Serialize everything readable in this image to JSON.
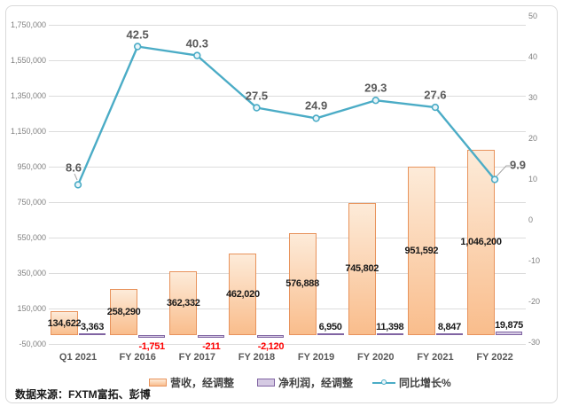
{
  "source_text": "数据来源：FXTM富拓、彭博",
  "legend": {
    "revenue_label": "营收，经调整",
    "profit_label": "净利润，经调整",
    "growth_label": "同比增长%"
  },
  "colors": {
    "revenue_fill_top": "#FDEBD9",
    "revenue_fill_bottom": "#F9BD8C",
    "revenue_border": "#E8935C",
    "profit_fill": "#D5CAE3",
    "profit_border": "#8064A2",
    "growth_line": "#4BACC6",
    "growth_marker_fill": "#EAF5F9",
    "negative_label": "#FF0000",
    "gridline": "#DCDCDC",
    "axis_text": "#808080",
    "category_text": "#595959",
    "leader_line": "#A6A6A6"
  },
  "chart_data": {
    "type": "combo bar+line, dual axis",
    "categories": [
      "Q1 2021",
      "FY 2016",
      "FY 2017",
      "FY 2018",
      "FY 2019",
      "FY 2020",
      "FY 2021",
      "FY 2022"
    ],
    "series": [
      {
        "name": "营收，经调整",
        "type": "bar",
        "axis": "left",
        "values": [
          134622,
          258290,
          362332,
          462020,
          576888,
          745802,
          951592,
          1046200
        ],
        "labels": [
          "134,622",
          "258,290",
          "362,332",
          "462,020",
          "576,888",
          "745,802",
          "951,592",
          "1,046,200"
        ]
      },
      {
        "name": "净利润，经调整",
        "type": "bar",
        "axis": "left",
        "values": [
          3363,
          -1751,
          -211,
          -2120,
          6950,
          11398,
          8847,
          19875
        ],
        "labels": [
          "3,363",
          "-1,751",
          "-211",
          "-2,120",
          "6,950",
          "11,398",
          "8,847",
          "19,875"
        ]
      },
      {
        "name": "同比增长%",
        "type": "line",
        "axis": "right",
        "values": [
          8.6,
          42.5,
          40.3,
          27.5,
          24.9,
          29.3,
          27.6,
          9.9
        ],
        "labels": [
          "8.6",
          "42.5",
          "40.3",
          "27.5",
          "24.9",
          "29.3",
          "27.6",
          "9.9"
        ]
      }
    ],
    "left_axis": {
      "min": -50000,
      "max": 1750000,
      "step": 200000,
      "tick_labels": [
        "1,750,000",
        "1,550,000",
        "1,350,000",
        "1,150,000",
        "950,000",
        "750,000",
        "550,000",
        "350,000",
        "150,000",
        "-50,000"
      ]
    },
    "right_axis": {
      "min": -30,
      "max": 50,
      "step": 10,
      "tick_labels": [
        "50",
        "40",
        "30",
        "20",
        "10",
        "0",
        "-10",
        "-20",
        "-30"
      ]
    },
    "grid": true,
    "legend_position": "bottom"
  }
}
